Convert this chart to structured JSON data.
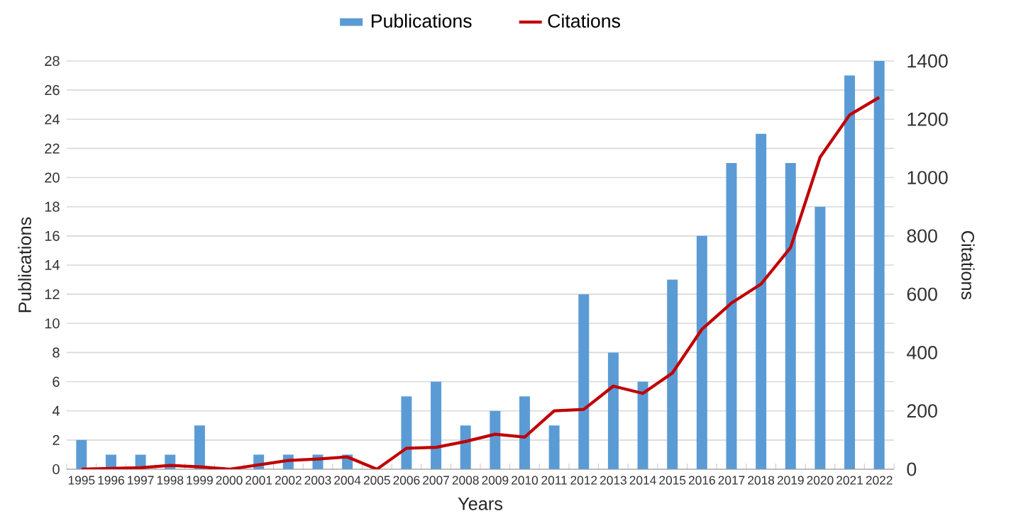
{
  "chart_data": {
    "type": "bar",
    "xlabel": "Years",
    "ylabel": "Publications",
    "y2label": "Citations",
    "categories": [
      "1995",
      "1996",
      "1997",
      "1998",
      "1999",
      "2000",
      "2001",
      "2002",
      "2003",
      "2004",
      "2005",
      "2006",
      "2007",
      "2008",
      "2009",
      "2010",
      "2011",
      "2012",
      "2013",
      "2014",
      "2015",
      "2016",
      "2017",
      "2018",
      "2019",
      "2020",
      "2021",
      "2022"
    ],
    "series": [
      {
        "name": "Publications",
        "color": "#5b9bd5",
        "values": [
          2,
          1,
          1,
          1,
          3,
          0,
          1,
          1,
          1,
          1,
          0,
          5,
          6,
          3,
          4,
          5,
          3,
          12,
          8,
          6,
          13,
          16,
          21,
          23,
          21,
          18,
          27,
          28
        ]
      },
      {
        "name": "Citations",
        "type": "line",
        "axis": "y2",
        "color": "#c00000",
        "values": [
          0,
          3,
          5,
          13,
          8,
          0,
          15,
          30,
          35,
          42,
          0,
          72,
          75,
          95,
          120,
          110,
          200,
          205,
          285,
          260,
          330,
          480,
          570,
          635,
          760,
          1070,
          1215,
          1275
        ]
      }
    ],
    "ylim": [
      0,
      28
    ],
    "yticks": [
      0,
      2,
      4,
      6,
      8,
      10,
      12,
      14,
      16,
      18,
      20,
      22,
      24,
      26,
      28
    ],
    "y2lim": [
      0,
      1400
    ],
    "y2ticks": [
      0,
      200,
      400,
      600,
      800,
      1000,
      1200,
      1400
    ],
    "grid": "y",
    "legend": "top"
  }
}
